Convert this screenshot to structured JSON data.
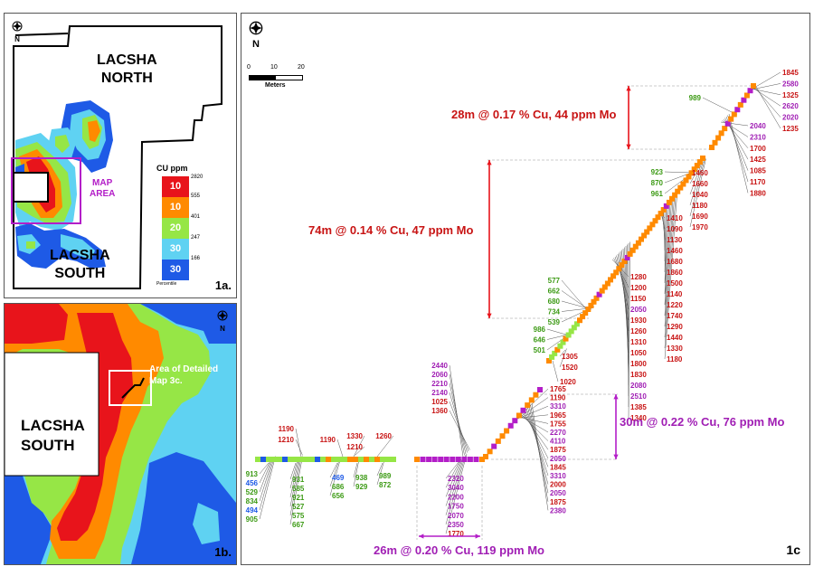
{
  "colors": {
    "red": "#e8141b",
    "orange": "#ff8a00",
    "green": "#96e646",
    "cyan": "#5fd2f2",
    "blue": "#1e5ae6",
    "purple": "#b31ec8",
    "label_red": "#c81414",
    "label_green": "#3c9a14",
    "label_blue": "#1e5ae6",
    "label_purple": "#a01eb4"
  },
  "north_symbol": "N",
  "panel_1a": {
    "north_label": "N",
    "north_zone": "LACSHA\nNORTH",
    "south_zone": "LACSHA\nSOUTH",
    "north_line1": "LACSHA",
    "north_line2": "NORTH",
    "south_line1": "LACSHA",
    "south_line2": "SOUTH",
    "map_area_line1": "MAP",
    "map_area_line2": "AREA",
    "legend_title": "CU ppm",
    "legend_rows": [
      {
        "label": "10",
        "color": "#e8141b",
        "top_value": "2820",
        "bottom_value": "555"
      },
      {
        "label": "10",
        "color": "#ff8a00",
        "bottom_value": "401"
      },
      {
        "label": "20",
        "color": "#96e646",
        "bottom_value": "247"
      },
      {
        "label": "30",
        "color": "#5fd2f2",
        "bottom_value": "166"
      },
      {
        "label": "30",
        "color": "#1e5ae6",
        "bottom_value": ""
      }
    ],
    "legend_footer": "Percentile",
    "panel_id": "1a."
  },
  "panel_1b": {
    "north_label": "N",
    "zone_line1": "LACSHA",
    "zone_line2": "SOUTH",
    "callout_line1": "Area of Detailed",
    "callout_line2": "Map 3c.",
    "panel_id": "1b."
  },
  "panel_1c": {
    "north_label": "N",
    "scale": {
      "ticks": [
        "0",
        "10",
        "20"
      ],
      "unit": "Meters"
    },
    "intervals": [
      {
        "text": "28m @ 0.17 % Cu, 44 ppm Mo",
        "color": "#c81414"
      },
      {
        "text": "74m @ 0.14 % Cu, 47 ppm Mo",
        "color": "#c81414"
      },
      {
        "text": "30m @ 0.22 % Cu, 76 ppm Mo",
        "color": "#a01eb4"
      },
      {
        "text": "26m @ 0.20 % Cu, 119 ppm Mo",
        "color": "#a01eb4"
      }
    ],
    "label_groups": {
      "top_right": [
        {
          "v": "1845",
          "c": "r"
        },
        {
          "v": "2580",
          "c": "p"
        },
        {
          "v": "1325",
          "c": "r"
        },
        {
          "v": "2620",
          "c": "p"
        },
        {
          "v": "2020",
          "c": "p"
        },
        {
          "v": "1235",
          "c": "r"
        }
      ],
      "top_right_lower": [
        {
          "v": "2040",
          "c": "p"
        },
        {
          "v": "2310",
          "c": "p"
        },
        {
          "v": "1700",
          "c": "r"
        },
        {
          "v": "1425",
          "c": "r"
        },
        {
          "v": "1085",
          "c": "r"
        },
        {
          "v": "1170",
          "c": "r"
        },
        {
          "v": "1880",
          "c": "r"
        }
      ],
      "top_left_single": [
        {
          "v": "989",
          "c": "g"
        }
      ],
      "mid_right_a": [
        {
          "v": "1460",
          "c": "r"
        },
        {
          "v": "1660",
          "c": "r"
        },
        {
          "v": "1040",
          "c": "r"
        },
        {
          "v": "1180",
          "c": "r"
        },
        {
          "v": "1690",
          "c": "r"
        },
        {
          "v": "1970",
          "c": "r"
        }
      ],
      "mid_left_a": [
        {
          "v": "923",
          "c": "g"
        },
        {
          "v": "870",
          "c": "g"
        },
        {
          "v": "961",
          "c": "g"
        }
      ],
      "mid_right_b": [
        {
          "v": "1410",
          "c": "r"
        },
        {
          "v": "1090",
          "c": "r"
        },
        {
          "v": "1130",
          "c": "r"
        },
        {
          "v": "1460",
          "c": "r"
        },
        {
          "v": "1680",
          "c": "r"
        },
        {
          "v": "1860",
          "c": "r"
        },
        {
          "v": "1500",
          "c": "r"
        },
        {
          "v": "1140",
          "c": "r"
        },
        {
          "v": "1220",
          "c": "r"
        },
        {
          "v": "1740",
          "c": "r"
        },
        {
          "v": "1290",
          "c": "r"
        },
        {
          "v": "1440",
          "c": "r"
        },
        {
          "v": "1330",
          "c": "r"
        },
        {
          "v": "1180",
          "c": "r"
        }
      ],
      "mid_right_c": [
        {
          "v": "1280",
          "c": "r"
        },
        {
          "v": "1200",
          "c": "r"
        },
        {
          "v": "1150",
          "c": "r"
        },
        {
          "v": "2050",
          "c": "p"
        },
        {
          "v": "1930",
          "c": "r"
        },
        {
          "v": "1260",
          "c": "r"
        },
        {
          "v": "1310",
          "c": "r"
        },
        {
          "v": "1050",
          "c": "r"
        },
        {
          "v": "1800",
          "c": "r"
        },
        {
          "v": "1830",
          "c": "r"
        },
        {
          "v": "2080",
          "c": "p"
        },
        {
          "v": "2510",
          "c": "p"
        },
        {
          "v": "1385",
          "c": "r"
        },
        {
          "v": "1340",
          "c": "r"
        }
      ],
      "mid_left_b": [
        {
          "v": "577",
          "c": "g"
        },
        {
          "v": "662",
          "c": "g"
        },
        {
          "v": "680",
          "c": "g"
        },
        {
          "v": "734",
          "c": "g"
        },
        {
          "v": "539",
          "c": "g"
        }
      ],
      "mid_left_c": [
        {
          "v": "986",
          "c": "g"
        },
        {
          "v": "646",
          "c": "g"
        },
        {
          "v": "501",
          "c": "g"
        }
      ],
      "mid_bottom": [
        {
          "v": "1305",
          "c": "r"
        },
        {
          "v": "1520",
          "c": "r"
        }
      ],
      "mid_bottom_single": [
        {
          "v": "1020",
          "c": "r"
        }
      ],
      "lower_right": [
        {
          "v": "1765",
          "c": "r"
        },
        {
          "v": "1190",
          "c": "r"
        },
        {
          "v": "3310",
          "c": "p"
        },
        {
          "v": "1965",
          "c": "r"
        },
        {
          "v": "1755",
          "c": "r"
        },
        {
          "v": "2270",
          "c": "p"
        },
        {
          "v": "4110",
          "c": "p"
        },
        {
          "v": "1875",
          "c": "r"
        },
        {
          "v": "2050",
          "c": "p"
        },
        {
          "v": "1845",
          "c": "r"
        },
        {
          "v": "3310",
          "c": "p"
        },
        {
          "v": "2000",
          "c": "r"
        },
        {
          "v": "2050",
          "c": "p"
        },
        {
          "v": "1875",
          "c": "r"
        },
        {
          "v": "2380",
          "c": "p"
        }
      ],
      "lower_top": [
        {
          "v": "2440",
          "c": "p"
        },
        {
          "v": "2060",
          "c": "p"
        },
        {
          "v": "2210",
          "c": "p"
        },
        {
          "v": "2140",
          "c": "p"
        },
        {
          "v": "1025",
          "c": "r"
        },
        {
          "v": "1360",
          "c": "r"
        }
      ],
      "lower_bottom": [
        {
          "v": "2320",
          "c": "p"
        },
        {
          "v": "3040",
          "c": "p"
        },
        {
          "v": "2200",
          "c": "p"
        },
        {
          "v": "1750",
          "c": "p"
        },
        {
          "v": "2070",
          "c": "p"
        },
        {
          "v": "2350",
          "c": "p"
        },
        {
          "v": "1770",
          "c": "r"
        }
      ],
      "left_top_a": [
        {
          "v": "1190",
          "c": "r"
        },
        {
          "v": "1210",
          "c": "r"
        }
      ],
      "left_top_b": [
        {
          "v": "1190",
          "c": "r"
        }
      ],
      "left_top_c": [
        {
          "v": "1330",
          "c": "r"
        },
        {
          "v": "1210",
          "c": "r"
        }
      ],
      "left_top_d": [
        {
          "v": "1260",
          "c": "r"
        }
      ],
      "left_bottom_a": [
        {
          "v": "913",
          "c": "g"
        },
        {
          "v": "456",
          "c": "b"
        },
        {
          "v": "529",
          "c": "g"
        },
        {
          "v": "834",
          "c": "g"
        },
        {
          "v": "494",
          "c": "b"
        },
        {
          "v": "905",
          "c": "g"
        }
      ],
      "left_bottom_b": [
        {
          "v": "931",
          "c": "g"
        },
        {
          "v": "585",
          "c": "g"
        },
        {
          "v": "921",
          "c": "g"
        },
        {
          "v": "527",
          "c": "g"
        },
        {
          "v": "575",
          "c": "g"
        },
        {
          "v": "667",
          "c": "g"
        }
      ],
      "left_bottom_c": [
        {
          "v": "469",
          "c": "b"
        },
        {
          "v": "686",
          "c": "g"
        },
        {
          "v": "656",
          "c": "g"
        }
      ],
      "left_bottom_d": [
        {
          "v": "938",
          "c": "g"
        },
        {
          "v": "929",
          "c": "g"
        }
      ],
      "left_bottom_e": [
        {
          "v": "989",
          "c": "g"
        },
        {
          "v": "872",
          "c": "g"
        }
      ]
    },
    "panel_id": "1c"
  }
}
